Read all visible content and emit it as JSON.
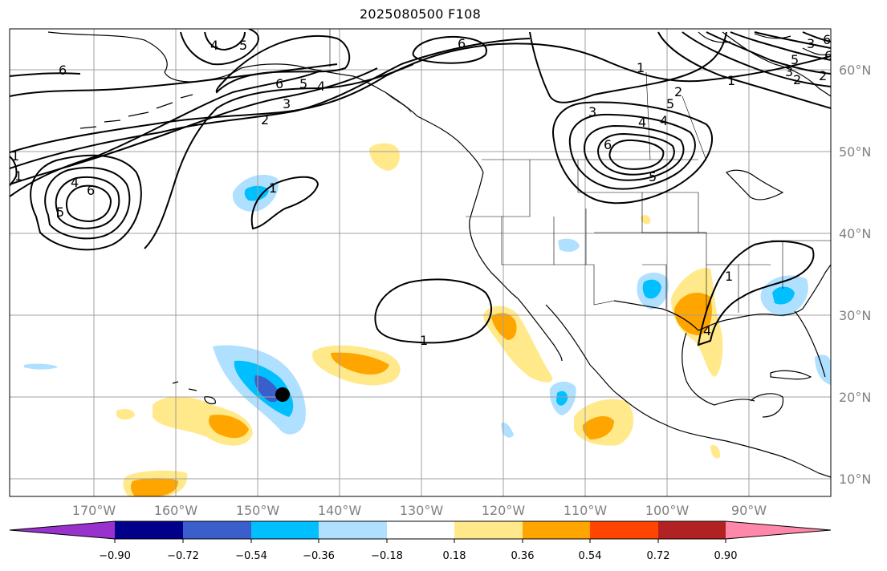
{
  "title": "2025080500 F108",
  "map": {
    "lon_labels": [
      "170°W",
      "160°W",
      "150°W",
      "140°W",
      "130°W",
      "120°W",
      "110°W",
      "100°W",
      "90°W"
    ],
    "lat_labels": [
      "60°N",
      "50°N",
      "40°N",
      "30°N",
      "20°N",
      "10°N"
    ],
    "contour_labels": [
      "1",
      "2",
      "3",
      "4",
      "5",
      "6",
      "4",
      "5",
      "6",
      "5",
      "4",
      "6",
      "5",
      "4",
      "3",
      "2",
      "1",
      "6",
      "1",
      "6",
      "4",
      "3",
      "1",
      "6",
      "5",
      "4",
      "2",
      "1",
      "5",
      "2",
      "3",
      "6",
      "1",
      "1"
    ]
  },
  "colorbar": {
    "tick_labels": [
      "−0.90",
      "−0.72",
      "−0.54",
      "−0.36",
      "−0.18",
      "0.18",
      "0.36",
      "0.54",
      "0.72",
      "0.90"
    ],
    "colors": [
      "#9932cc",
      "#00008b",
      "#3a5fcd",
      "#00bfff",
      "#b0e0ff",
      "#ffffff",
      "#ffe98a",
      "#ffa500",
      "#ff4500",
      "#b22222",
      "#ff88aa"
    ]
  },
  "colors": {
    "grid": "#a0a0a0",
    "coast": "#000000",
    "label": "#808080"
  }
}
